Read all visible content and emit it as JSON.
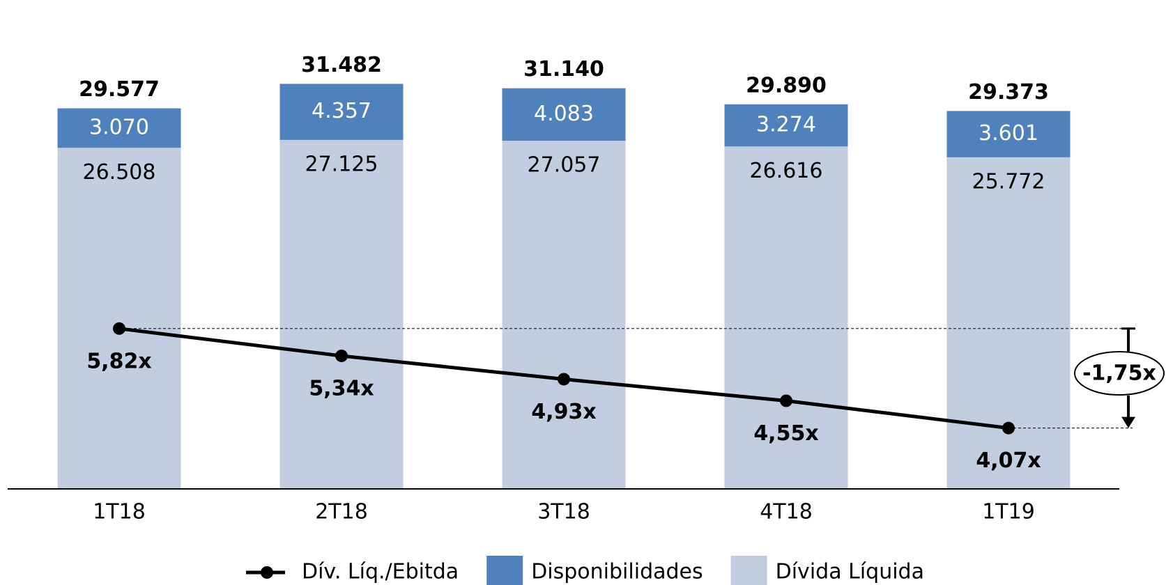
{
  "chart_data": {
    "type": "bar",
    "categories": [
      "1T18",
      "2T18",
      "3T18",
      "4T18",
      "1T19"
    ],
    "series": [
      {
        "name": "Dív. Líq./Ebitda",
        "type": "line",
        "axis": "y2",
        "color": "#000000",
        "values": [
          5.82,
          5.34,
          4.93,
          4.55,
          4.07
        ],
        "value_labels": [
          "5,82x",
          "5,34x",
          "4,93x",
          "4,55x",
          "4,07x"
        ]
      },
      {
        "name": "Disponibilidades",
        "type": "bar",
        "color": "#4f81bd",
        "values": [
          3070,
          4357,
          4083,
          3274,
          3601
        ],
        "value_labels": [
          "3.070",
          "4.357",
          "4.083",
          "3.274",
          "3.601"
        ]
      },
      {
        "name": "Dívida Líquida",
        "type": "bar",
        "color": "#c3cde0",
        "values": [
          26508,
          27125,
          27057,
          26616,
          25772
        ],
        "value_labels": [
          "26.508",
          "27.125",
          "27.057",
          "26.616",
          "25.772"
        ]
      }
    ],
    "totals": [
      29577,
      31482,
      31140,
      29890,
      29373
    ],
    "total_labels": [
      "29.577",
      "31.482",
      "31.140",
      "29.890",
      "29.373"
    ],
    "annotation": "-1,75x",
    "ylim": [
      0,
      38000
    ],
    "y2lim": [
      3,
      11.6
    ],
    "legend": "bottom"
  }
}
